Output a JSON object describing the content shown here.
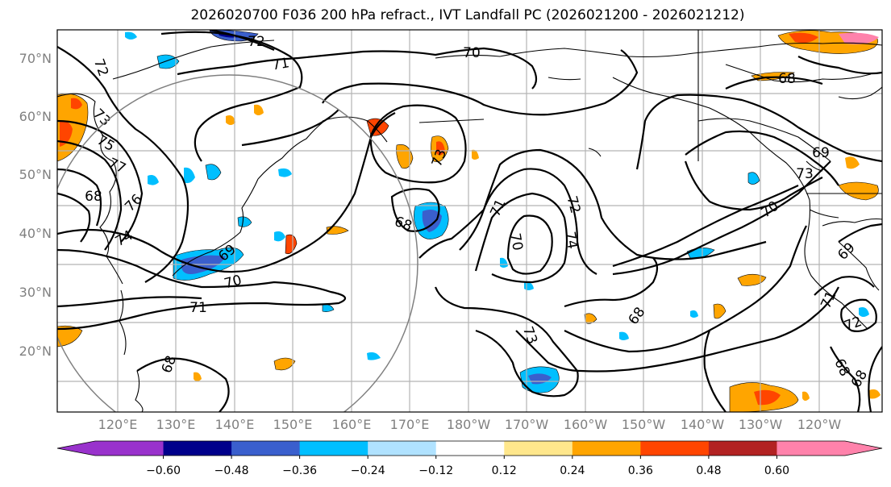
{
  "title": "2026020700 F036 200 hPa refract., IVT Landfall PC (2026021200 - 2026021212)",
  "lat_labels": [
    "70°N",
    "60°N",
    "50°N",
    "40°N",
    "30°N",
    "20°N"
  ],
  "lon_labels": [
    "120°E",
    "130°E",
    "140°E",
    "150°E",
    "160°E",
    "170°E",
    "180°W",
    "170°W",
    "160°W",
    "150°W",
    "140°W",
    "130°W",
    "120°W"
  ],
  "contour_labels": [
    "72",
    "71",
    "70",
    "72",
    "73",
    "75",
    "77",
    "76",
    "74",
    "68",
    "69",
    "70",
    "71",
    "68",
    "68",
    "73",
    "71",
    "72",
    "74",
    "70",
    "73",
    "68",
    "68",
    "69",
    "73",
    "70",
    "69",
    "71",
    "72",
    "68",
    "68"
  ],
  "colorbar": {
    "ticks": [
      "−0.60",
      "−0.48",
      "−0.36",
      "−0.24",
      "−0.12",
      "0.12",
      "0.24",
      "0.36",
      "0.48",
      "0.60"
    ],
    "colors": [
      "#9932cc",
      "#00008b",
      "#3a5fcd",
      "#00bfff",
      "#b0e2ff",
      "#ffffff",
      "#ffe78c",
      "#ffa500",
      "#ff4500",
      "#b22222",
      "#ff82ab"
    ]
  }
}
